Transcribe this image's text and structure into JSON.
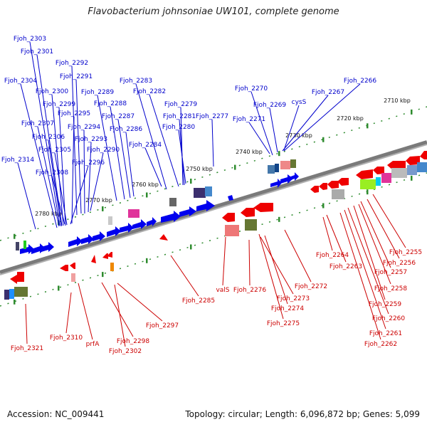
{
  "title": "Flavobacterium johnsoniae UW101, complete genome",
  "footer": {
    "accession": "Accession: NC_009441",
    "topology": "Topology: circular; Length: 6,096,872 bp; Genes: 5,099"
  },
  "colors": {
    "forward_label": "#0000cc",
    "reverse_label": "#cc0000",
    "axis": "#808080",
    "tick": "#2e8b2e"
  },
  "scale_labels": [
    "2710 kbp",
    "2720 kbp",
    "2730 kbp",
    "2740 kbp",
    "2750 kbp",
    "2760 kbp",
    "2770 kbp",
    "2780 kbp"
  ],
  "forward_genes": [
    "Fjoh_2303",
    "Fjoh_2301",
    "Fjoh_2292",
    "Fjoh_2304",
    "Fjoh_2291",
    "Fjoh_2300",
    "Fjoh_2289",
    "Fjoh_2299",
    "Fjoh_2288",
    "Fjoh_2295",
    "Fjoh_2307",
    "Fjoh_2294",
    "Fjoh_2287",
    "Fjoh_2306",
    "Fjoh_2293",
    "Fjoh_2286",
    "Fjoh_2305",
    "Fjoh_2290",
    "Fjoh_2314",
    "Fjoh_2296",
    "Fjoh_2308",
    "Fjoh_2283",
    "Fjoh_2282",
    "Fjoh_2279",
    "Fjoh_2281",
    "Fjoh_2280",
    "Fjoh_2284",
    "Fjoh_2277",
    "Fjoh_2270",
    "Fjoh_2267",
    "Fjoh_2266",
    "cysS",
    "Fjoh_2269",
    "Fjoh_2271"
  ],
  "reverse_genes": [
    "Fjoh_2321",
    "Fjoh_2310",
    "prfA",
    "Fjoh_2302",
    "Fjoh_2298",
    "Fjoh_2297",
    "Fjoh_2285",
    "valS",
    "Fjoh_2276",
    "Fjoh_2273",
    "Fjoh_2274",
    "Fjoh_2275",
    "Fjoh_2272",
    "Fjoh_2264",
    "Fjoh_2263",
    "Fjoh_2255",
    "Fjoh_2256",
    "Fjoh_2257",
    "Fjoh_2258",
    "Fjoh_2259",
    "Fjoh_2260",
    "Fjoh_2261",
    "Fjoh_2262"
  ]
}
